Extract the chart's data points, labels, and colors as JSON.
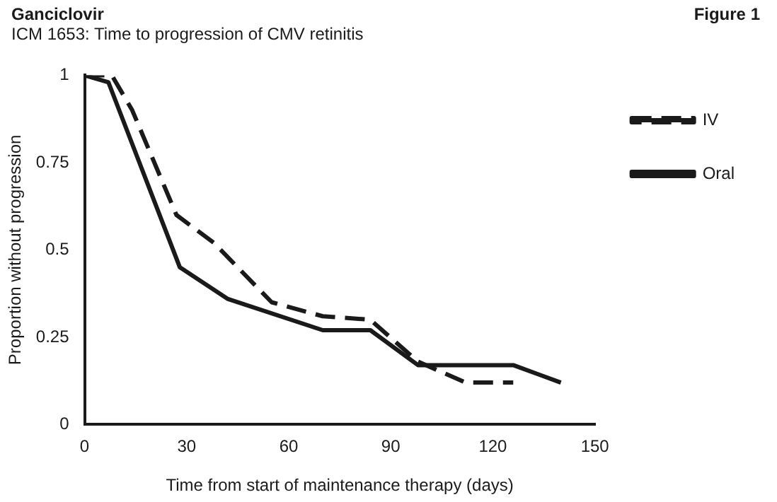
{
  "chart_data": {
    "type": "line",
    "title": "Ganciclovir",
    "subtitle": "ICM 1653: Time to progression of CMV retinitis",
    "annotations": [
      "Figure 1"
    ],
    "xlabel": "Time from start of maintenance therapy (days)",
    "ylabel": "Proportion without progression",
    "xlim": [
      0,
      150
    ],
    "xticks": [
      0,
      30,
      60,
      90,
      120,
      150
    ],
    "ylim": [
      0,
      1
    ],
    "yticks": [
      0,
      {
        "value": 0.25,
        "label": "0.25"
      },
      {
        "value": 0.5,
        "label": "0.5"
      },
      {
        "value": 0.75,
        "label": "0.75"
      },
      1
    ],
    "grid": false,
    "legend": "right",
    "marker": "none",
    "series": [
      {
        "name": "IV",
        "color": "#1a1a1a",
        "line_style": "dashed",
        "x": [
          0,
          8,
          14,
          27,
          38,
          55,
          70,
          84,
          98,
          112,
          126
        ],
        "values": [
          1,
          1,
          0.9,
          0.6,
          0.52,
          0.35,
          0.31,
          0.3,
          0.18,
          0.12,
          0.12
        ]
      },
      {
        "name": "Oral",
        "color": "#1a1a1a",
        "line_style": "solid",
        "x": [
          0,
          7,
          28,
          42,
          70,
          84,
          98,
          126,
          140
        ],
        "values": [
          1,
          0.98,
          0.45,
          0.36,
          0.27,
          0.27,
          0.17,
          0.17,
          0.12
        ]
      }
    ]
  }
}
